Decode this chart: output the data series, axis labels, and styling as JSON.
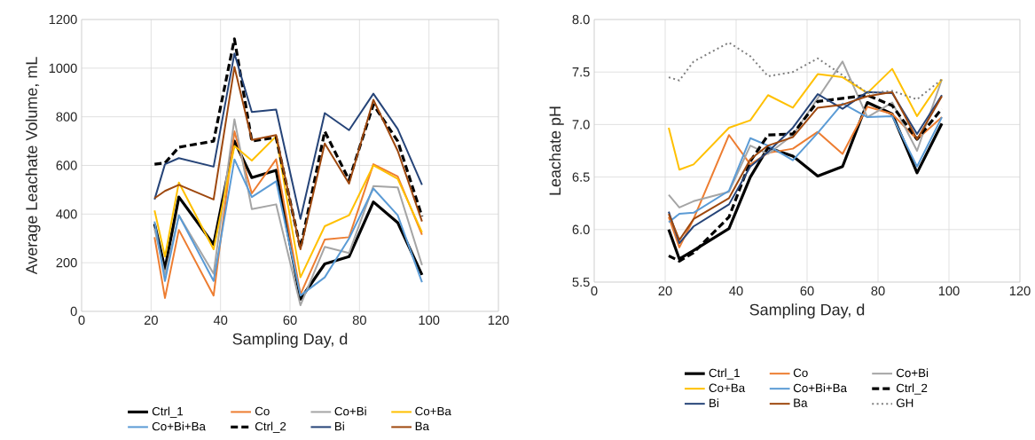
{
  "chart_data": [
    {
      "type": "line",
      "xlabel": "Sampling Day, d",
      "ylabel": "Average Leachate Volume, mL",
      "x": [
        21,
        24,
        28,
        38,
        44,
        49,
        56,
        63,
        70,
        77,
        84,
        91,
        98
      ],
      "xlim": [
        0,
        120
      ],
      "xticks": [
        0,
        20,
        40,
        60,
        80,
        100,
        120
      ],
      "ylim": [
        0,
        1200
      ],
      "yticks": [
        0,
        200,
        400,
        600,
        800,
        1000,
        1200
      ],
      "grid": true,
      "legend": "bottom",
      "series": [
        {
          "name": "Ctrl_1",
          "color": "#000000",
          "line_style": "solid",
          "values": [
            360,
            175,
            470,
            275,
            700,
            550,
            580,
            50,
            195,
            225,
            450,
            365,
            150
          ]
        },
        {
          "name": "Co",
          "color": "#ed7d31",
          "line_style": "solid",
          "values": [
            305,
            55,
            335,
            65,
            740,
            485,
            625,
            70,
            295,
            305,
            605,
            555,
            315
          ]
        },
        {
          "name": "Co+Bi",
          "color": "#a5a5a5",
          "line_style": "solid",
          "values": [
            340,
            150,
            395,
            155,
            790,
            420,
            440,
            25,
            265,
            240,
            515,
            510,
            190
          ]
        },
        {
          "name": "Co+Ba",
          "color": "#ffc000",
          "line_style": "solid",
          "values": [
            415,
            225,
            530,
            255,
            680,
            620,
            720,
            140,
            350,
            395,
            600,
            545,
            325
          ]
        },
        {
          "name": "Co+Bi+Ba",
          "color": "#5b9bd5",
          "line_style": "solid",
          "values": [
            370,
            125,
            395,
            125,
            625,
            470,
            535,
            65,
            140,
            300,
            505,
            395,
            120
          ]
        },
        {
          "name": "Ctrl_2",
          "color": "#000000",
          "line_style": "dashed",
          "values": [
            605,
            610,
            675,
            700,
            1120,
            700,
            715,
            260,
            740,
            540,
            850,
            700,
            390
          ]
        },
        {
          "name": "Bi",
          "color": "#264478",
          "line_style": "solid",
          "values": [
            460,
            605,
            630,
            595,
            1060,
            820,
            830,
            380,
            815,
            745,
            895,
            750,
            520
          ]
        },
        {
          "name": "Ba",
          "color": "#9e480e",
          "line_style": "solid",
          "values": [
            465,
            495,
            520,
            460,
            1005,
            705,
            725,
            255,
            690,
            525,
            870,
            660,
            370
          ]
        }
      ]
    },
    {
      "type": "line",
      "xlabel": "Sampling Day, d",
      "ylabel": "Leachate pH",
      "x": [
        21,
        24,
        28,
        38,
        44,
        49,
        56,
        63,
        70,
        77,
        84,
        91,
        98
      ],
      "xlim": [
        0,
        120
      ],
      "xticks": [
        0,
        20,
        40,
        60,
        80,
        100,
        120
      ],
      "ylim": [
        5.5,
        8
      ],
      "yticks": [
        5.5,
        {
          "value": 6,
          "label": "6.0"
        },
        6.5,
        {
          "value": 7,
          "label": "7.0"
        },
        7.5,
        {
          "value": 8,
          "label": "8.0"
        }
      ],
      "grid": true,
      "legend": "bottom",
      "series": [
        {
          "name": "Ctrl_1",
          "color": "#000000",
          "line_style": "solid",
          "values": [
            6.0,
            5.72,
            5.8,
            6.01,
            6.5,
            6.78,
            6.7,
            6.51,
            6.6,
            7.21,
            7.1,
            6.54,
            7.01
          ]
        },
        {
          "name": "Co",
          "color": "#ed7d31",
          "line_style": "solid",
          "values": [
            6.12,
            5.83,
            6.1,
            6.9,
            6.62,
            6.73,
            6.77,
            6.93,
            6.72,
            7.17,
            7.1,
            6.86,
            7.07
          ]
        },
        {
          "name": "Co+Bi",
          "color": "#a5a5a5",
          "line_style": "solid",
          "values": [
            6.33,
            6.21,
            6.27,
            6.36,
            6.8,
            6.72,
            6.9,
            7.25,
            7.6,
            7.07,
            7.21,
            6.75,
            7.43
          ]
        },
        {
          "name": "Co+Ba",
          "color": "#ffc000",
          "line_style": "solid",
          "values": [
            6.97,
            6.57,
            6.62,
            6.97,
            7.04,
            7.28,
            7.16,
            7.48,
            7.45,
            7.3,
            7.53,
            7.08,
            7.43
          ]
        },
        {
          "name": "Co+Bi+Ba",
          "color": "#5b9bd5",
          "line_style": "solid",
          "values": [
            6.07,
            6.15,
            6.16,
            6.37,
            6.87,
            6.8,
            6.66,
            6.92,
            7.2,
            7.07,
            7.08,
            6.6,
            7.07
          ]
        },
        {
          "name": "Ctrl_2",
          "color": "#000000",
          "line_style": "dashed",
          "values": [
            5.75,
            5.7,
            5.78,
            6.12,
            6.65,
            6.9,
            6.91,
            7.22,
            7.25,
            7.28,
            7.18,
            6.86,
            7.15
          ]
        },
        {
          "name": "Bi",
          "color": "#264478",
          "line_style": "solid",
          "values": [
            6.17,
            5.87,
            6.03,
            6.24,
            6.6,
            6.74,
            6.97,
            7.29,
            7.15,
            7.31,
            7.3,
            6.91,
            7.28
          ]
        },
        {
          "name": "Ba",
          "color": "#9e480e",
          "line_style": "solid",
          "values": [
            6.15,
            5.9,
            6.1,
            6.3,
            6.67,
            6.8,
            6.88,
            7.16,
            7.19,
            7.27,
            7.31,
            6.86,
            7.27
          ]
        },
        {
          "name": "GH",
          "color": "#7f7f7f",
          "line_style": "dotted",
          "values": [
            7.45,
            7.42,
            7.6,
            7.78,
            7.65,
            7.46,
            7.5,
            7.63,
            7.47,
            7.3,
            7.32,
            7.24,
            7.43
          ]
        }
      ]
    }
  ]
}
